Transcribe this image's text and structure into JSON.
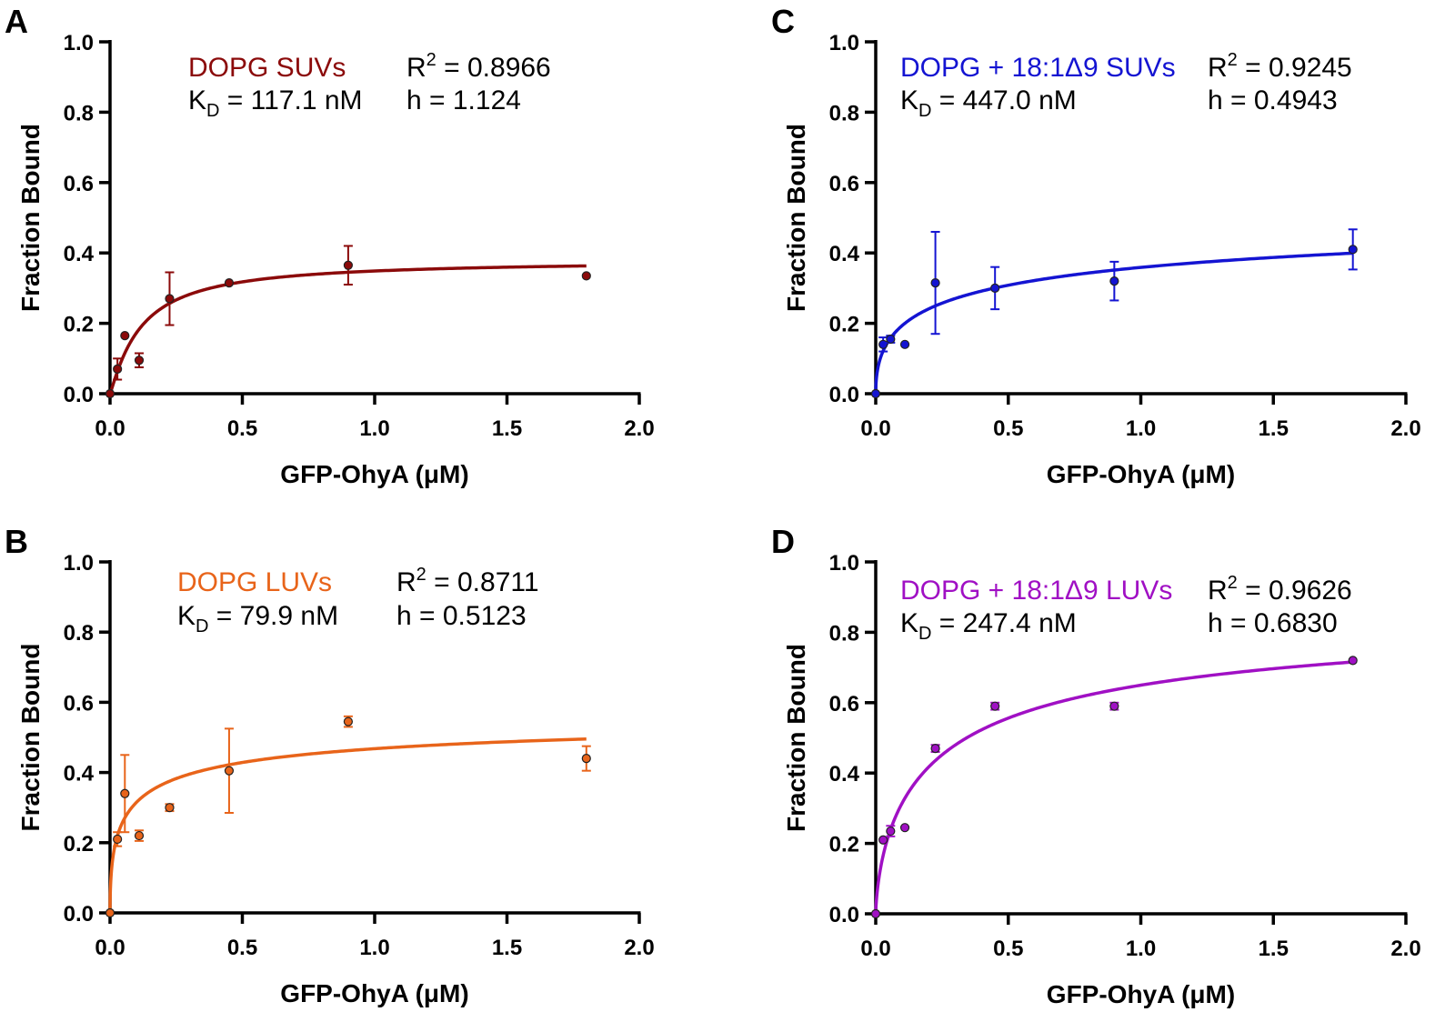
{
  "chart_data": [
    {
      "type": "scatter",
      "panel": "A",
      "series_name": "DOPG SUVs",
      "color": "#8b0a0a",
      "r2_value": "0.8966",
      "kd_value": "117.1 nM",
      "h_value": "1.124",
      "fit": {
        "model": "hill",
        "kd_uM": 0.1171,
        "h": 1.124,
        "bmax": 0.38
      },
      "xlabel": "GFP-OhyA (μM)",
      "ylabel": "Fraction Bound",
      "xlim": [
        0,
        2.0
      ],
      "ylim": [
        0,
        1.0
      ],
      "xticks": [
        "0.0",
        "0.5",
        "1.0",
        "1.5",
        "2.0"
      ],
      "yticks": [
        "0.0",
        "0.2",
        "0.4",
        "0.6",
        "0.8",
        "1.0"
      ],
      "x": [
        0,
        0.028,
        0.056,
        0.11,
        0.225,
        0.45,
        0.9,
        1.8
      ],
      "y": [
        0,
        0.07,
        0.165,
        0.095,
        0.27,
        0.315,
        0.365,
        0.335
      ],
      "err": [
        0,
        0.03,
        0,
        0.02,
        0.075,
        0,
        0.055,
        0
      ]
    },
    {
      "type": "scatter",
      "panel": "B",
      "series_name": "DOPG LUVs",
      "color": "#e8641a",
      "r2_value": "0.8711",
      "kd_value": "79.9 nM",
      "h_value": "0.5123",
      "fit": {
        "model": "hill",
        "kd_uM": 0.0799,
        "h": 0.5123,
        "bmax": 0.596
      },
      "xlabel": "GFP-OhyA (μM)",
      "ylabel": "Fraction Bound",
      "xlim": [
        0,
        2.0
      ],
      "ylim": [
        0,
        1.0
      ],
      "xticks": [
        "0.0",
        "0.5",
        "1.0",
        "1.5",
        "2.0"
      ],
      "yticks": [
        "0.0",
        "0.2",
        "0.4",
        "0.6",
        "0.8",
        "1.0"
      ],
      "x": [
        0,
        0.028,
        0.056,
        0.11,
        0.225,
        0.45,
        0.9,
        1.8
      ],
      "y": [
        0,
        0.21,
        0.34,
        0.22,
        0.3,
        0.405,
        0.545,
        0.44
      ],
      "err": [
        0,
        0.02,
        0.11,
        0.015,
        0.01,
        0.12,
        0.015,
        0.035
      ]
    },
    {
      "type": "scatter",
      "panel": "C",
      "series_name": "DOPG + 18:1Δ9 SUVs",
      "color": "#1414d2",
      "r2_value": "0.9245",
      "kd_value": "447.0 nM",
      "h_value": "0.4943",
      "fit": {
        "model": "hill",
        "kd_uM": 0.447,
        "h": 0.4943,
        "bmax": 0.6
      },
      "xlabel": "GFP-OhyA (μM)",
      "ylabel": "Fraction Bound",
      "xlim": [
        0,
        2.0
      ],
      "ylim": [
        0,
        1.0
      ],
      "xticks": [
        "0.0",
        "0.5",
        "1.0",
        "1.5",
        "2.0"
      ],
      "yticks": [
        "0.0",
        "0.2",
        "0.4",
        "0.6",
        "0.8",
        "1.0"
      ],
      "x": [
        0,
        0.028,
        0.056,
        0.11,
        0.225,
        0.45,
        0.9,
        1.8
      ],
      "y": [
        0,
        0.14,
        0.155,
        0.14,
        0.315,
        0.3,
        0.32,
        0.41
      ],
      "err": [
        0,
        0.02,
        0.01,
        0,
        0.145,
        0.06,
        0.055,
        0.057
      ]
    },
    {
      "type": "scatter",
      "panel": "D",
      "series_name": "DOPG + 18:1Δ9 LUVs",
      "color": "#a010c4",
      "r2_value": "0.9626",
      "kd_value": "247.4 nM",
      "h_value": "0.6830",
      "fit": {
        "model": "hill",
        "kd_uM": 0.2474,
        "h": 0.683,
        "bmax": 0.9
      },
      "xlabel": "GFP-OhyA (μM)",
      "ylabel": "Fraction Bound",
      "xlim": [
        0,
        2.0
      ],
      "ylim": [
        0,
        1.0
      ],
      "xticks": [
        "0.0",
        "0.5",
        "1.0",
        "1.5",
        "2.0"
      ],
      "yticks": [
        "0.0",
        "0.2",
        "0.4",
        "0.6",
        "0.8",
        "1.0"
      ],
      "x": [
        0,
        0.028,
        0.056,
        0.11,
        0.225,
        0.45,
        0.9,
        1.8
      ],
      "y": [
        0,
        0.21,
        0.235,
        0.245,
        0.47,
        0.59,
        0.59,
        0.72
      ],
      "err": [
        0,
        0,
        0.015,
        0,
        0.01,
        0.01,
        0.01,
        0
      ]
    }
  ],
  "labels": {
    "r2_prefix": "R",
    "r2_sup": "2",
    "kd_prefix": "K",
    "kd_sub": "D",
    "h_prefix": "h",
    "equals": " = "
  }
}
